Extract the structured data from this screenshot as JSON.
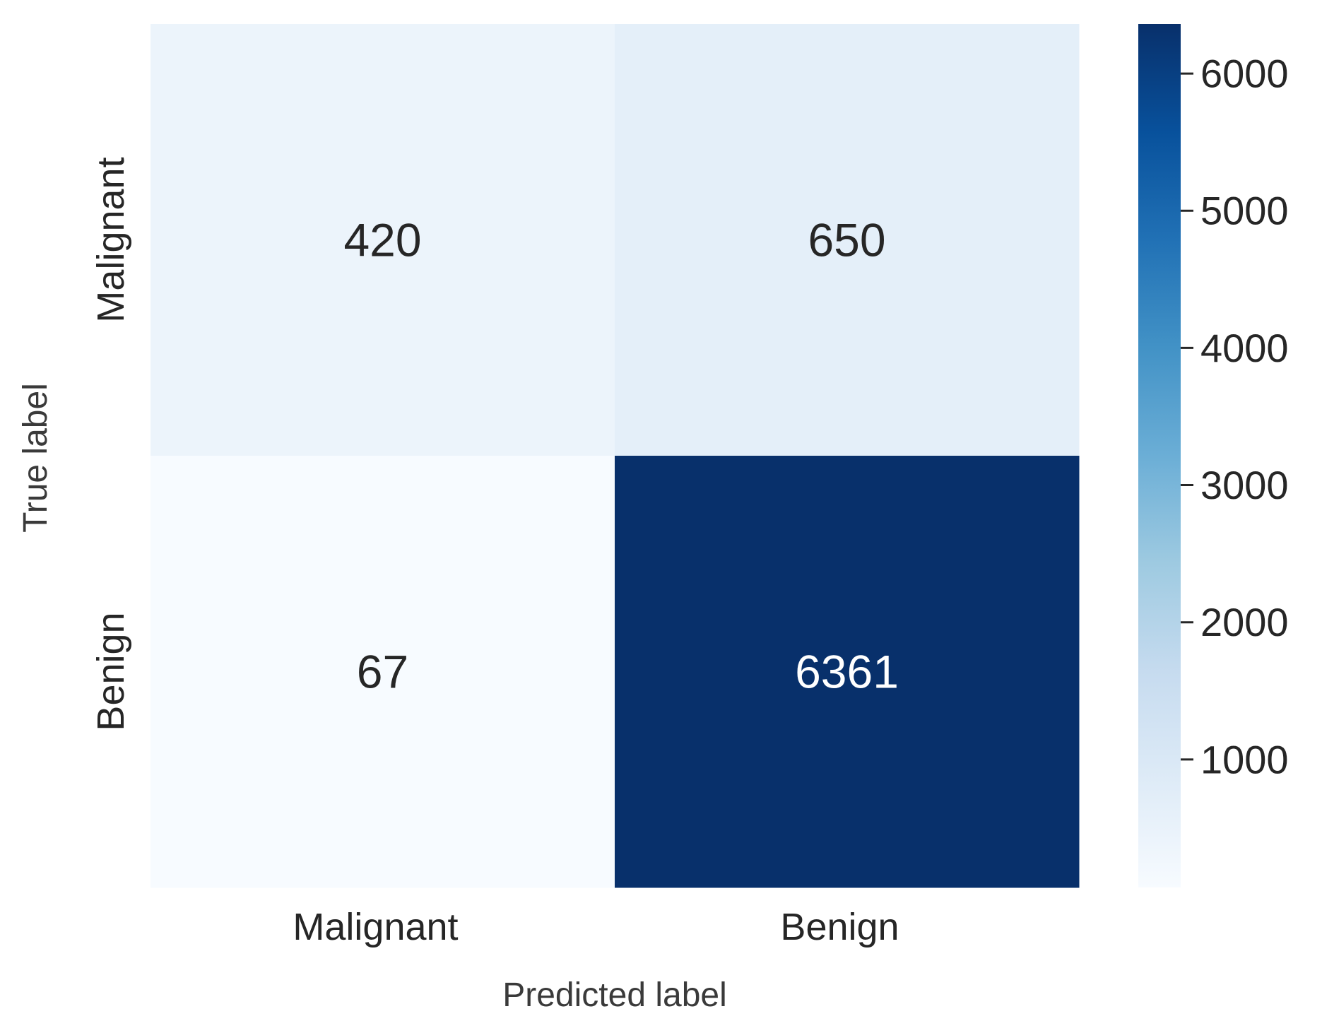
{
  "chart_data": {
    "type": "heatmap",
    "title": "",
    "xlabel": "Predicted label",
    "ylabel": "True label",
    "x_categories": [
      "Malignant",
      "Benign"
    ],
    "y_categories": [
      "Malignant",
      "Benign"
    ],
    "values": [
      [
        420,
        650
      ],
      [
        67,
        6361
      ]
    ],
    "colormap": "Blues",
    "colorbar": {
      "range": [
        67,
        6361
      ],
      "ticks": [
        1000,
        2000,
        3000,
        4000,
        5000,
        6000
      ],
      "tick_labels": [
        "1000",
        "2000",
        "3000",
        "4000",
        "5000",
        "6000"
      ]
    },
    "colors": {
      "low": "#f7fbff",
      "high": "#08306b",
      "text_dark": "#262626",
      "text_light": "#ffffff"
    }
  }
}
